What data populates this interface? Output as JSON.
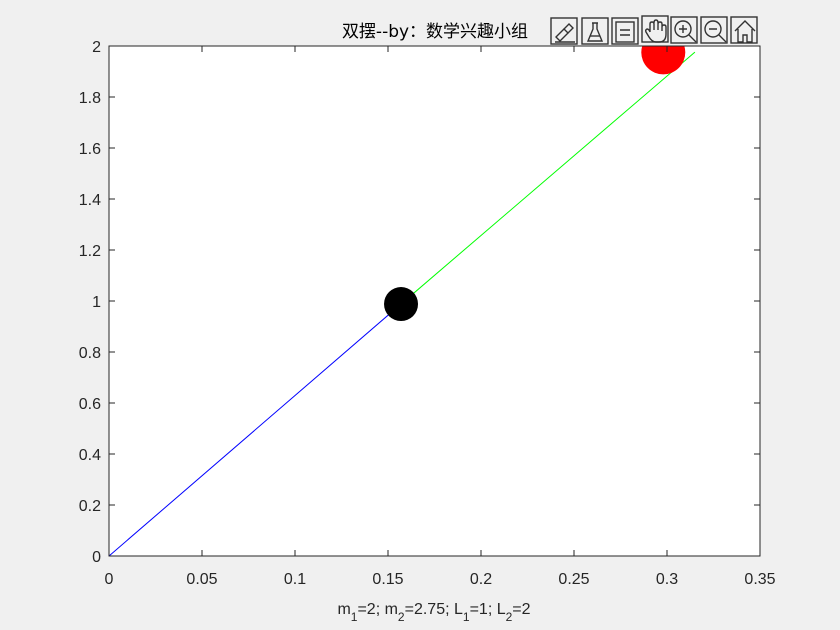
{
  "chart_data": {
    "type": "line",
    "title": "双摆--by：数学兴趣小组",
    "xlabel_parts": [
      {
        "t": "m",
        "sub": false
      },
      {
        "t": "1",
        "sub": true
      },
      {
        "t": "=2; m",
        "sub": false
      },
      {
        "t": "2",
        "sub": true
      },
      {
        "t": "=2.75; L",
        "sub": false
      },
      {
        "t": "1",
        "sub": true
      },
      {
        "t": "=1; L",
        "sub": false
      },
      {
        "t": "2",
        "sub": true
      },
      {
        "t": "=2",
        "sub": false
      }
    ],
    "xlim": [
      0,
      0.35
    ],
    "ylim": [
      0,
      2
    ],
    "xticks": [
      0,
      0.05,
      0.1,
      0.15,
      0.2,
      0.25,
      0.3,
      0.35
    ],
    "xtick_labels": [
      "0",
      "0.05",
      "0.1",
      "0.15",
      "0.2",
      "0.25",
      "0.3",
      "0.35"
    ],
    "yticks": [
      0,
      0.2,
      0.4,
      0.6,
      0.8,
      1,
      1.2,
      1.4,
      1.6,
      1.8,
      2
    ],
    "ytick_labels": [
      "0",
      "0.2",
      "0.4",
      "0.6",
      "0.8",
      "1",
      "1.2",
      "1.4",
      "1.6",
      "1.8",
      "2"
    ],
    "grid": false,
    "series": [
      {
        "color": "#0000ff",
        "points": [
          [
            0,
            0
          ],
          [
            0.157,
            0.988
          ]
        ]
      },
      {
        "color": "#00ff00",
        "points": [
          [
            0.157,
            0.988
          ],
          [
            0.315,
            1.976
          ]
        ]
      }
    ],
    "markers": [
      {
        "x": 0.157,
        "y": 0.988,
        "color": "#000000",
        "size": "medium"
      },
      {
        "x": 0.298,
        "y": 1.975,
        "color": "#ff0000",
        "size": "large"
      }
    ]
  },
  "toolbar": {
    "icons": [
      "brush-icon",
      "data-tip-icon",
      "legend-icon",
      "pan-icon",
      "zoom-in-icon",
      "zoom-out-icon",
      "home-icon"
    ]
  }
}
